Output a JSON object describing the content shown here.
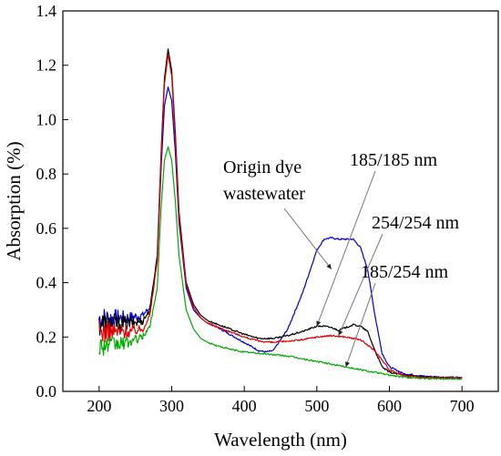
{
  "chart_data": {
    "type": "line",
    "title": "",
    "xlabel": "Wavelength (nm)",
    "ylabel": "Absorption (%)",
    "xlim": [
      150,
      750
    ],
    "ylim": [
      0.0,
      1.4
    ],
    "xticks": [
      "200",
      "300",
      "400",
      "500",
      "600",
      "700"
    ],
    "yticks": [
      "0.0",
      "0.2",
      "0.4",
      "0.6",
      "0.8",
      "1.0",
      "1.2",
      "1.4"
    ],
    "grid": false,
    "legend": "none",
    "series": [
      {
        "color": "#0000cc",
        "noise": 0.045,
        "x": [
          200,
          220,
          240,
          260,
          270,
          280,
          285,
          290,
          295,
          300,
          305,
          310,
          320,
          330,
          340,
          350,
          360,
          380,
          400,
          420,
          430,
          440,
          460,
          480,
          490,
          500,
          510,
          520,
          530,
          540,
          550,
          560,
          570,
          580,
          590,
          600,
          620,
          650,
          700
        ],
        "y": [
          0.27,
          0.27,
          0.27,
          0.28,
          0.31,
          0.48,
          0.8,
          1.05,
          1.12,
          1.07,
          0.88,
          0.62,
          0.38,
          0.3,
          0.27,
          0.25,
          0.24,
          0.21,
          0.18,
          0.15,
          0.145,
          0.15,
          0.23,
          0.36,
          0.44,
          0.52,
          0.56,
          0.565,
          0.56,
          0.56,
          0.56,
          0.53,
          0.45,
          0.28,
          0.14,
          0.09,
          0.065,
          0.055,
          0.05
        ]
      },
      {
        "color": "#000000",
        "noise": 0.05,
        "x": [
          200,
          220,
          240,
          260,
          270,
          280,
          285,
          290,
          295,
          300,
          305,
          310,
          320,
          330,
          340,
          350,
          360,
          380,
          400,
          420,
          440,
          460,
          480,
          500,
          510,
          520,
          530,
          540,
          550,
          560,
          570,
          580,
          590,
          600,
          620,
          650,
          700
        ],
        "y": [
          0.25,
          0.25,
          0.25,
          0.26,
          0.3,
          0.5,
          0.85,
          1.15,
          1.26,
          1.18,
          0.95,
          0.66,
          0.4,
          0.32,
          0.28,
          0.26,
          0.25,
          0.23,
          0.21,
          0.195,
          0.195,
          0.205,
          0.22,
          0.24,
          0.24,
          0.235,
          0.225,
          0.235,
          0.245,
          0.24,
          0.22,
          0.15,
          0.09,
          0.07,
          0.06,
          0.052,
          0.048
        ]
      },
      {
        "color": "#dd0000",
        "noise": 0.045,
        "x": [
          200,
          220,
          240,
          260,
          270,
          280,
          285,
          290,
          295,
          300,
          305,
          310,
          320,
          330,
          340,
          350,
          360,
          380,
          400,
          420,
          440,
          460,
          480,
          500,
          520,
          540,
          560,
          580,
          600,
          620,
          650,
          700
        ],
        "y": [
          0.22,
          0.22,
          0.22,
          0.23,
          0.28,
          0.48,
          0.84,
          1.13,
          1.24,
          1.16,
          0.93,
          0.64,
          0.39,
          0.31,
          0.27,
          0.25,
          0.24,
          0.22,
          0.2,
          0.185,
          0.18,
          0.185,
          0.19,
          0.2,
          0.205,
          0.2,
          0.19,
          0.15,
          0.08,
          0.058,
          0.05,
          0.048
        ]
      },
      {
        "color": "#00aa00",
        "noise": 0.04,
        "x": [
          200,
          220,
          240,
          260,
          270,
          280,
          285,
          290,
          295,
          300,
          305,
          310,
          320,
          330,
          340,
          350,
          360,
          380,
          400,
          420,
          440,
          460,
          480,
          500,
          520,
          540,
          560,
          580,
          600,
          620,
          650,
          700
        ],
        "y": [
          0.17,
          0.17,
          0.18,
          0.2,
          0.24,
          0.38,
          0.66,
          0.85,
          0.9,
          0.85,
          0.7,
          0.5,
          0.3,
          0.23,
          0.195,
          0.18,
          0.17,
          0.155,
          0.145,
          0.14,
          0.135,
          0.13,
          0.12,
          0.11,
          0.1,
          0.09,
          0.08,
          0.07,
          0.06,
          0.052,
          0.048,
          0.046
        ]
      }
    ],
    "annotations": [
      {
        "lines": [
          "Origin dye",
          "wastewater"
        ],
        "point_to": [
          520,
          0.45
        ]
      },
      {
        "lines": [
          "185/185 nm"
        ],
        "point_to": [
          500,
          0.24
        ]
      },
      {
        "lines": [
          "254/254 nm"
        ],
        "point_to": [
          530,
          0.205
        ]
      },
      {
        "lines": [
          "185/254 nm"
        ],
        "point_to": [
          540,
          0.09
        ]
      }
    ]
  }
}
